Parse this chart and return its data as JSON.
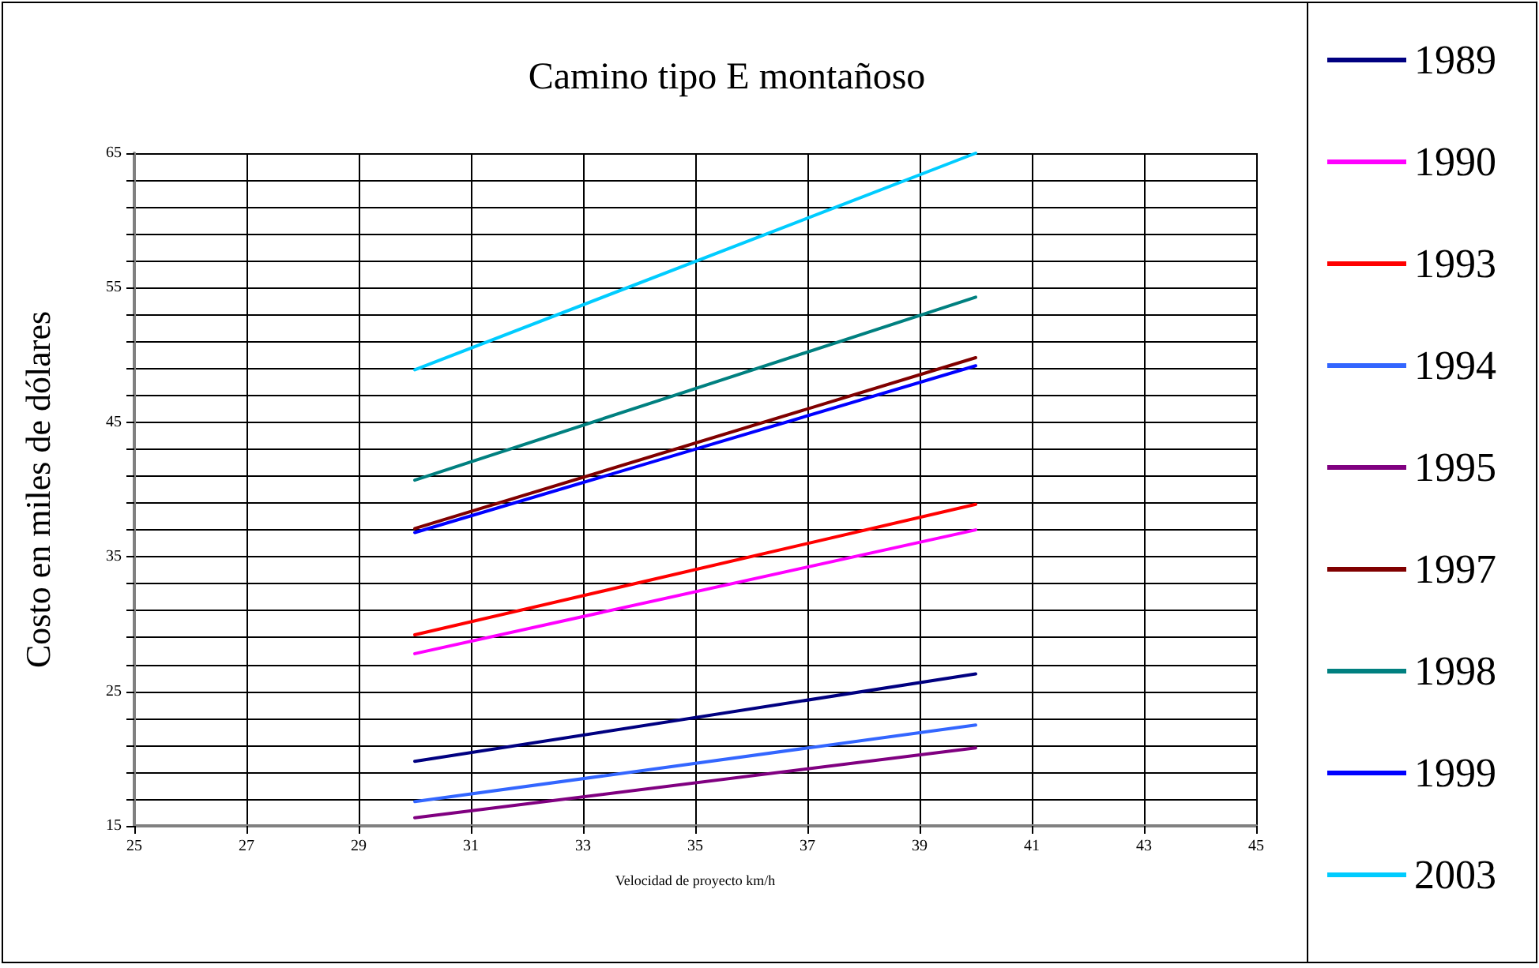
{
  "chart_data": {
    "type": "line",
    "title": "Camino tipo E montañoso",
    "xlabel": "Velocidad de proyecto km/h",
    "ylabel": "Costo en miles de dólares",
    "xlim": [
      25,
      45
    ],
    "xticks": [
      25,
      27,
      29,
      31,
      33,
      35,
      37,
      39,
      41,
      43,
      45
    ],
    "ylim": [
      15,
      65
    ],
    "yticks": [
      15,
      {
        "value": 17,
        "label": null
      },
      {
        "value": 19,
        "label": null
      },
      {
        "value": 21,
        "label": null
      },
      {
        "value": 23,
        "label": null
      },
      25,
      {
        "value": 27,
        "label": null
      },
      {
        "value": 29,
        "label": null
      },
      {
        "value": 31,
        "label": null
      },
      {
        "value": 33,
        "label": null
      },
      35,
      {
        "value": 37,
        "label": null
      },
      {
        "value": 39,
        "label": null
      },
      {
        "value": 41,
        "label": null
      },
      {
        "value": 43,
        "label": null
      },
      45,
      {
        "value": 47,
        "label": null
      },
      {
        "value": 49,
        "label": null
      },
      {
        "value": 51,
        "label": null
      },
      {
        "value": 53,
        "label": null
      },
      55,
      {
        "value": 57,
        "label": null
      },
      {
        "value": 59,
        "label": null
      },
      {
        "value": 61,
        "label": null
      },
      {
        "value": 63,
        "label": null
      },
      65
    ],
    "grid": true,
    "legend": "right",
    "marker": "none",
    "line_style": "solid",
    "x": [
      30,
      40
    ],
    "series": [
      {
        "name": "1989",
        "color": "#000080",
        "values": [
          19.8,
          26.3
        ]
      },
      {
        "name": "1990",
        "color": "#ff00ff",
        "values": [
          27.8,
          37.0
        ]
      },
      {
        "name": "1993",
        "color": "#ff0000",
        "values": [
          29.2,
          38.9
        ]
      },
      {
        "name": "1994",
        "color": "#3366ff",
        "values": [
          16.8,
          22.5
        ]
      },
      {
        "name": "1995",
        "color": "#800080",
        "values": [
          15.6,
          20.8
        ]
      },
      {
        "name": "1997",
        "color": "#800000",
        "values": [
          37.1,
          49.8
        ]
      },
      {
        "name": "1998",
        "color": "#008080",
        "values": [
          40.7,
          54.3
        ]
      },
      {
        "name": "1999",
        "color": "#0000ff",
        "values": [
          36.8,
          49.2
        ]
      },
      {
        "name": "2003",
        "color": "#00ccff",
        "values": [
          48.9,
          65.0
        ]
      }
    ]
  }
}
